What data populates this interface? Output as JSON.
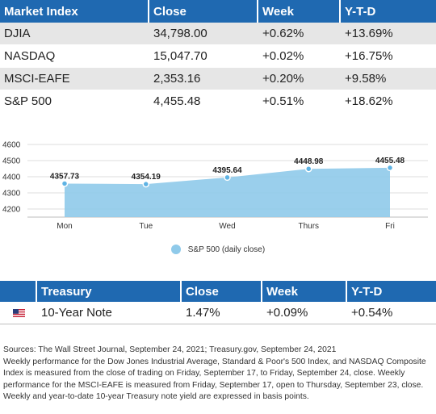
{
  "market_table": {
    "headers": [
      "Market Index",
      "Close",
      "Week",
      "Y-T-D"
    ],
    "rows": [
      [
        "DJIA",
        "34,798.00",
        "+0.62%",
        "+13.69%"
      ],
      [
        "NASDAQ",
        "15,047.70",
        "+0.02%",
        "+16.75%"
      ],
      [
        "MSCI-EAFE",
        "2,353.16",
        "+0.20%",
        "+9.58%"
      ],
      [
        "S&P 500",
        "4,455.48",
        "+0.51%",
        "+18.62%"
      ]
    ]
  },
  "chart_data": {
    "type": "area",
    "categories": [
      "Mon",
      "Tue",
      "Wed",
      "Thurs",
      "Fri"
    ],
    "series": [
      {
        "name": "S&P 500 (daily close)",
        "values": [
          4357.73,
          4354.19,
          4395.64,
          4448.98,
          4455.48
        ]
      }
    ],
    "data_labels": [
      "4357.73",
      "4354.19",
      "4395.64",
      "4448.98",
      "4455.48"
    ],
    "yticks": [
      "4200",
      "4300",
      "4400",
      "4500",
      "4600"
    ],
    "ylim": [
      4150,
      4650
    ],
    "grid": true,
    "legend": "bottom",
    "color": "#8fcaea"
  },
  "treasury_table": {
    "headers": [
      "Treasury",
      "Close",
      "Week",
      "Y-T-D"
    ],
    "rows": [
      {
        "flag": "us-flag-icon",
        "name": "10-Year Note",
        "close": "1.47%",
        "week": "+0.09%",
        "ytd": "+0.54%"
      }
    ]
  },
  "notes": {
    "line1": "Sources: The Wall Street Journal, September 24, 2021; Treasury.gov, September 24, 2021",
    "line2": "Weekly performance for the Dow Jones Industrial Average, Standard & Poor's 500 Index, and NASDAQ Composite Index is measured from the close of trading on Friday, September 17, to Friday, September 24, close. Weekly performance for the MSCI-EAFE is measured from Friday, September 17, open to Thursday, September 23, close. Weekly and year-to-date 10-year Treasury note yield are expressed in basis points."
  },
  "colors": {
    "header_bg": "#1f69b1",
    "alt_row": "#e6e6e6",
    "area": "#8fcaea",
    "point": "#5eb3e4"
  }
}
